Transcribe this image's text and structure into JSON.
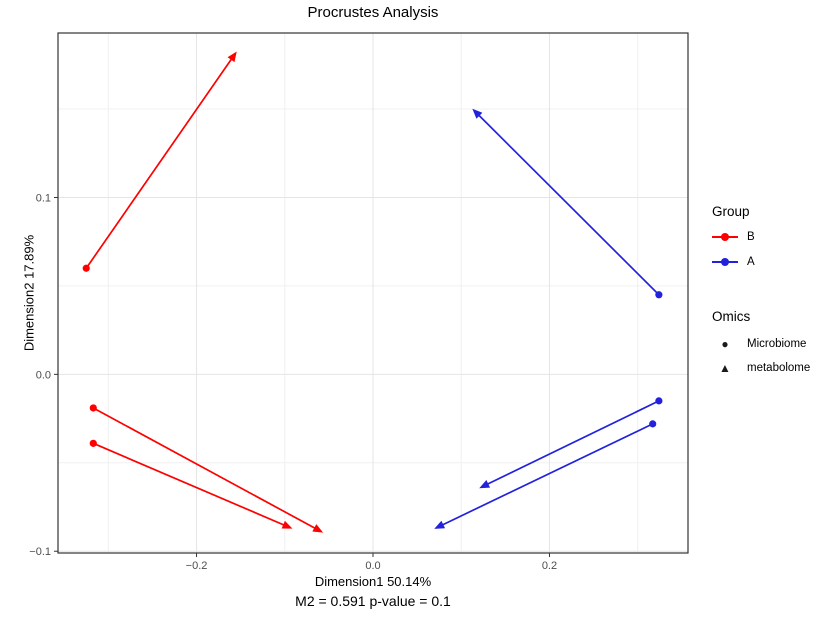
{
  "chart_data": {
    "type": "scatter",
    "title": "Procrustes Analysis",
    "xlabel": "Dimension1 50.14%",
    "ylabel": "Dimension2 17.89%",
    "caption": "M2 = 0.591  p-value = 0.1",
    "stats": {
      "m2": 0.591,
      "p_value": 0.1
    },
    "xlim": [
      -0.357,
      0.357
    ],
    "ylim": [
      -0.101,
      0.193
    ],
    "x_ticks": [
      -0.2,
      0.0,
      0.2
    ],
    "x_tick_labels": [
      "−0.2",
      "0.0",
      "0.2"
    ],
    "y_ticks": [
      -0.1,
      0.0,
      0.1
    ],
    "y_tick_labels": [
      "−0.1",
      "0.0",
      "0.1"
    ],
    "x_minor_ticks": [
      -0.3,
      -0.1,
      0.1,
      0.3
    ],
    "y_minor_ticks": [
      -0.05,
      0.05,
      0.15
    ],
    "grid": true,
    "legend_position": "right",
    "series": [
      {
        "name": "B",
        "color": "#ff0000",
        "pairs": [
          {
            "microbiome": [
              -0.325,
              0.06
            ],
            "metabolome": [
              -0.158,
              0.18
            ]
          },
          {
            "microbiome": [
              -0.317,
              -0.019
            ],
            "metabolome": [
              -0.062,
              -0.088
            ]
          },
          {
            "microbiome": [
              -0.317,
              -0.039
            ],
            "metabolome": [
              -0.097,
              -0.086
            ]
          }
        ]
      },
      {
        "name": "A",
        "color": "#2222dd",
        "pairs": [
          {
            "microbiome": [
              0.324,
              0.045
            ],
            "metabolome": [
              0.117,
              0.148
            ]
          },
          {
            "microbiome": [
              0.324,
              -0.015
            ],
            "metabolome": [
              0.126,
              -0.063
            ]
          },
          {
            "microbiome": [
              0.317,
              -0.028
            ],
            "metabolome": [
              0.075,
              -0.086
            ]
          }
        ]
      }
    ]
  },
  "legend": {
    "group": {
      "title": "Group",
      "items": [
        {
          "label": "B",
          "color": "#ff0000"
        },
        {
          "label": "A",
          "color": "#2222dd"
        }
      ]
    },
    "omics": {
      "title": "Omics",
      "symbol_color": "#1a1a1a",
      "items": [
        {
          "label": "Microbiome",
          "shape": "circle",
          "icon": "●"
        },
        {
          "label": "metabolome",
          "shape": "triangle",
          "icon": "▲"
        }
      ]
    }
  },
  "colors": {
    "grid_major": "#e5e5e5",
    "grid_minor": "#f0f0f0",
    "panel_border": "#333333",
    "tick_mark": "#333333",
    "tick_text": "#4d4d4d",
    "background": "#ffffff"
  }
}
